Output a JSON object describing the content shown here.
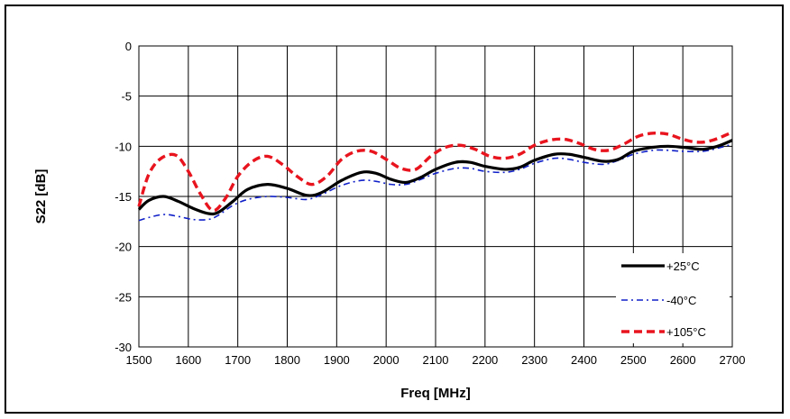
{
  "chart_data": {
    "type": "line",
    "title": "",
    "xlabel": "Freq [MHz]",
    "ylabel": "S22 [dB]",
    "xlim": [
      1500,
      2700
    ],
    "ylim": [
      -30,
      0
    ],
    "xticks": [
      1500,
      1600,
      1700,
      1800,
      1900,
      2000,
      2100,
      2200,
      2300,
      2400,
      2500,
      2600,
      2700
    ],
    "yticks": [
      0,
      -5,
      -10,
      -15,
      -20,
      -25,
      -30
    ],
    "grid": true,
    "legend": "bottom-right inside",
    "series": [
      {
        "name": "+25°C",
        "color": "#000000",
        "style": "solid-thick",
        "x": [
          1500,
          1520,
          1550,
          1580,
          1610,
          1640,
          1660,
          1690,
          1720,
          1760,
          1800,
          1840,
          1870,
          1910,
          1950,
          1980,
          2010,
          2040,
          2070,
          2100,
          2140,
          2170,
          2200,
          2240,
          2270,
          2300,
          2340,
          2370,
          2400,
          2440,
          2470,
          2500,
          2540,
          2570,
          2600,
          2640,
          2670,
          2700
        ],
        "y": [
          -16.3,
          -15.4,
          -15.0,
          -15.5,
          -16.2,
          -16.7,
          -16.6,
          -15.5,
          -14.3,
          -13.8,
          -14.2,
          -14.9,
          -14.6,
          -13.4,
          -12.6,
          -12.7,
          -13.3,
          -13.6,
          -13.1,
          -12.3,
          -11.6,
          -11.6,
          -12.0,
          -12.3,
          -12.1,
          -11.4,
          -10.8,
          -10.8,
          -11.1,
          -11.5,
          -11.3,
          -10.5,
          -10.1,
          -10.0,
          -10.1,
          -10.3,
          -10.0,
          -9.4
        ]
      },
      {
        "name": "-40°C",
        "color": "#1020c8",
        "style": "dash-dot",
        "x": [
          1500,
          1520,
          1550,
          1580,
          1610,
          1640,
          1660,
          1690,
          1720,
          1760,
          1800,
          1840,
          1870,
          1910,
          1950,
          1980,
          2010,
          2040,
          2070,
          2100,
          2140,
          2170,
          2200,
          2240,
          2270,
          2300,
          2340,
          2370,
          2400,
          2440,
          2470,
          2500,
          2540,
          2570,
          2600,
          2640,
          2670,
          2700
        ],
        "y": [
          -17.4,
          -17.1,
          -16.8,
          -17.0,
          -17.3,
          -17.3,
          -16.9,
          -15.9,
          -15.3,
          -15.0,
          -15.1,
          -15.3,
          -14.8,
          -13.9,
          -13.4,
          -13.5,
          -13.8,
          -13.8,
          -13.3,
          -12.7,
          -12.2,
          -12.2,
          -12.5,
          -12.6,
          -12.3,
          -11.7,
          -11.2,
          -11.3,
          -11.6,
          -11.8,
          -11.4,
          -10.8,
          -10.4,
          -10.4,
          -10.5,
          -10.5,
          -10.2,
          -9.8
        ]
      },
      {
        "name": "+105°C",
        "color": "#e8141e",
        "style": "dashed-thick",
        "x": [
          1500,
          1520,
          1545,
          1575,
          1600,
          1625,
          1650,
          1675,
          1700,
          1730,
          1760,
          1790,
          1820,
          1850,
          1880,
          1910,
          1940,
          1970,
          2000,
          2030,
          2060,
          2090,
          2120,
          2150,
          2180,
          2210,
          2240,
          2270,
          2300,
          2330,
          2360,
          2390,
          2420,
          2450,
          2480,
          2510,
          2540,
          2570,
          2600,
          2630,
          2660,
          2700
        ],
        "y": [
          -16.0,
          -12.8,
          -11.2,
          -10.9,
          -12.5,
          -14.8,
          -16.4,
          -15.2,
          -13.0,
          -11.5,
          -11.0,
          -11.8,
          -13.0,
          -13.8,
          -13.0,
          -11.3,
          -10.5,
          -10.5,
          -11.3,
          -12.2,
          -12.3,
          -11.0,
          -10.1,
          -9.9,
          -10.3,
          -11.0,
          -11.2,
          -10.8,
          -9.9,
          -9.4,
          -9.3,
          -9.7,
          -10.3,
          -10.4,
          -9.8,
          -9.0,
          -8.7,
          -8.8,
          -9.3,
          -9.6,
          -9.4,
          -8.6
        ]
      }
    ]
  }
}
